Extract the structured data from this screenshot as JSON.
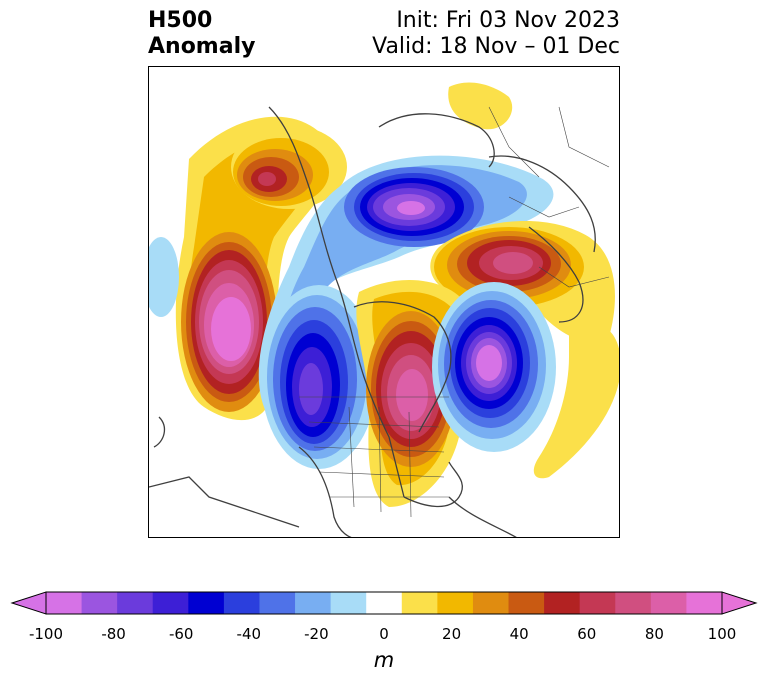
{
  "title": {
    "left_line1": "H500",
    "left_line2": "Anomaly",
    "right_line1": "Init: Fri 03 Nov 2023",
    "right_line2": "Valid: 18 Nov – 01 Dec"
  },
  "colorbar": {
    "units": "m",
    "ticks": [
      "-100",
      "-80",
      "-60",
      "-40",
      "-20",
      "0",
      "20",
      "40",
      "60",
      "80",
      "100"
    ],
    "tick_values": [
      -100,
      -80,
      -60,
      -40,
      -20,
      0,
      20,
      40,
      60,
      80,
      100
    ],
    "extend": "both",
    "levels": [
      -100,
      -90,
      -80,
      -70,
      -60,
      -50,
      -40,
      -30,
      -20,
      -10,
      10,
      20,
      30,
      40,
      50,
      60,
      70,
      80,
      90,
      100
    ],
    "colors": [
      "#d672e6",
      "#9b55e0",
      "#6b3bdc",
      "#3d1fd6",
      "#0000d2",
      "#2b3fdd",
      "#4f72e8",
      "#78aef2",
      "#a8dcf7",
      "#ffffff",
      "#fbe04a",
      "#f2b800",
      "#e08c10",
      "#c95a12",
      "#b22222",
      "#c43854",
      "#d04f80",
      "#dc5fa8",
      "#e672d8"
    ],
    "under_color": "#d672e6",
    "over_color": "#e672d8"
  },
  "map_data": {
    "projection": "polar stereographic, North America / Arctic",
    "anomalies": [
      {
        "sign": "positive",
        "peak_m": 100,
        "region": "Northeast Pacific / Gulf of Alaska"
      },
      {
        "sign": "positive",
        "peak_m": 60,
        "region": "Alaska / Yukon"
      },
      {
        "sign": "negative",
        "peak_m": -90,
        "region": "Arctic Ocean / Greenland north"
      },
      {
        "sign": "positive",
        "peak_m": 70,
        "region": "Scandinavia / Northwest Russia"
      },
      {
        "sign": "negative",
        "peak_m": -70,
        "region": "West Coast US / British Columbia"
      },
      {
        "sign": "positive",
        "peak_m": 80,
        "region": "Hudson Bay / Eastern Canada"
      },
      {
        "sign": "negative",
        "peak_m": -100,
        "region": "North Atlantic"
      }
    ]
  }
}
